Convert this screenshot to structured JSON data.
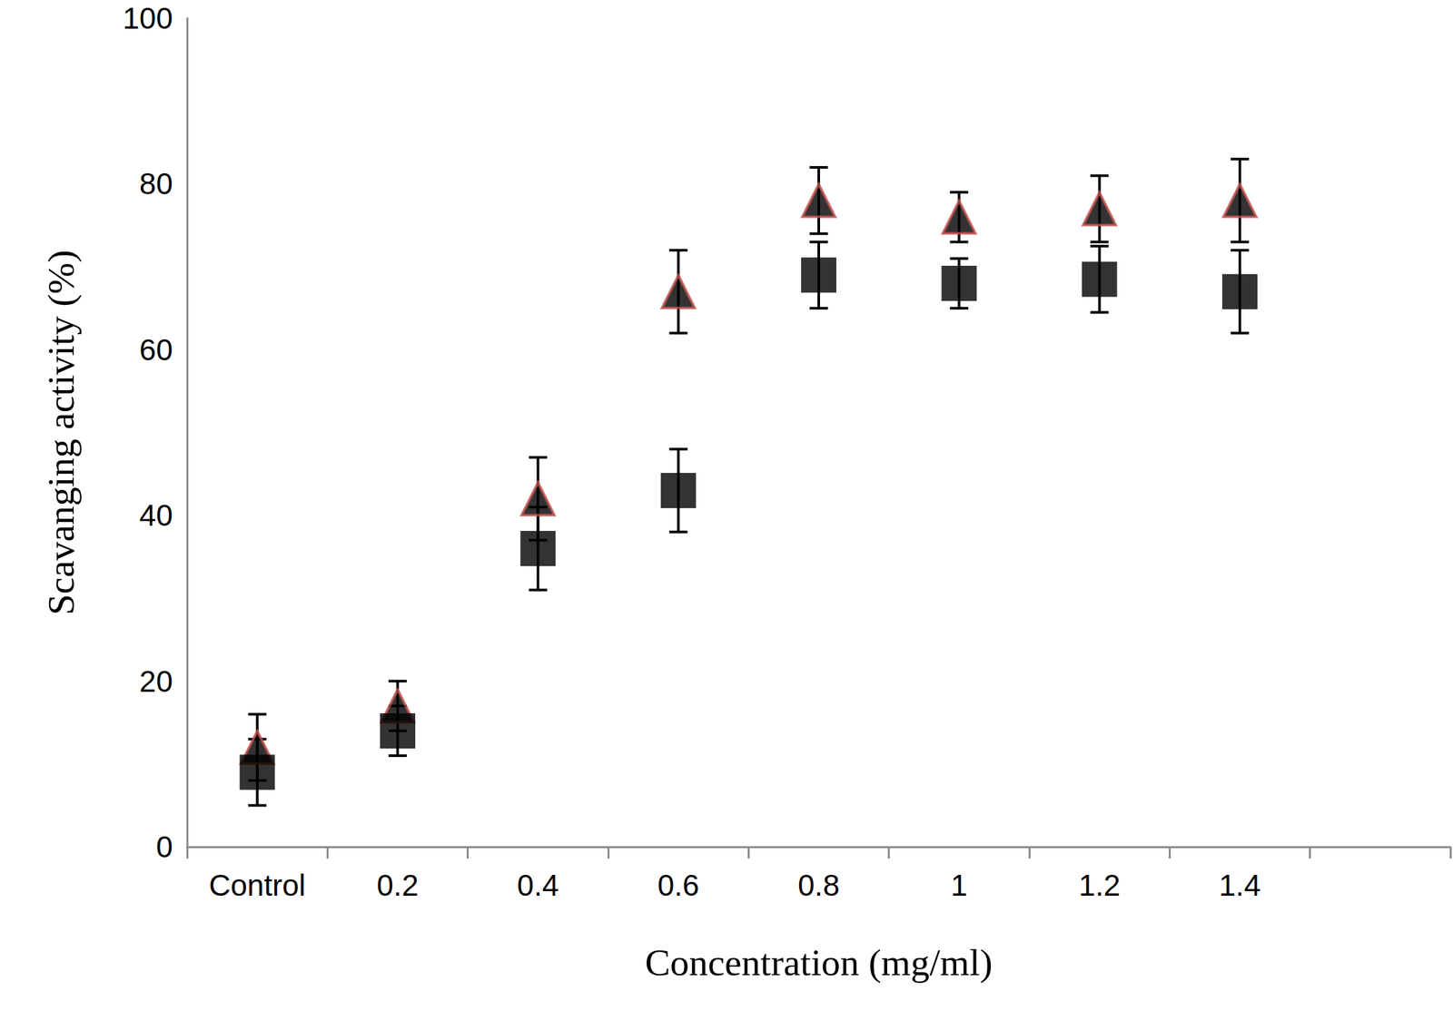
{
  "chart_data": {
    "type": "scatter",
    "x_label": "Concentration (mg/ml)",
    "y_label": "Scavanging activity (%)",
    "categories": [
      "Control",
      "0.2",
      "0.4",
      "0.6",
      "0.8",
      "1",
      "1.2",
      "1.4",
      null
    ],
    "series": [
      {
        "color": "#000000",
        "marker": "triangle",
        "values": [
          12,
          17,
          42,
          67,
          78,
          76,
          77,
          78,
          null
        ],
        "errors": [
          4,
          3,
          5,
          5,
          4,
          3,
          4,
          5,
          null
        ]
      },
      {
        "color": "#000000",
        "marker": "square",
        "values": [
          9,
          14,
          36,
          43,
          69,
          68,
          68.5,
          67,
          null
        ],
        "errors": [
          4,
          3,
          5,
          5,
          4,
          3,
          4,
          5,
          null
        ]
      }
    ],
    "ylim": [
      0,
      100
    ],
    "yticks": [
      0,
      20,
      40,
      60,
      80,
      100
    ],
    "grid": false
  }
}
